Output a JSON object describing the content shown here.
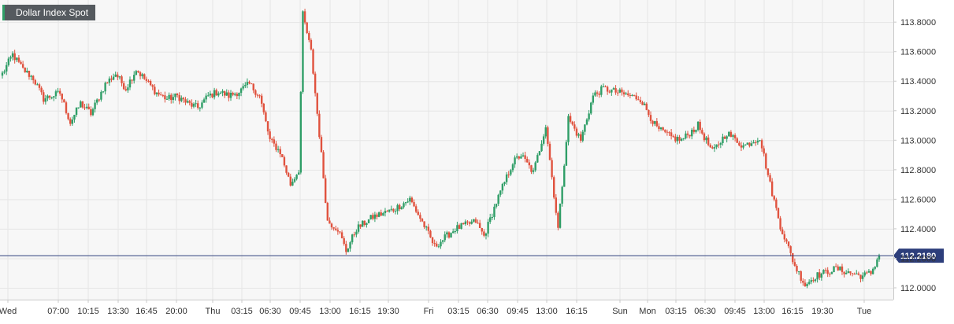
{
  "chart_data": {
    "type": "candlestick",
    "title": "Dollar Index Spot",
    "ylim": [
      111.92,
      113.95
    ],
    "yticks": [
      112.0,
      112.2,
      112.4,
      112.6,
      112.8,
      113.0,
      113.2,
      113.4,
      113.6,
      113.8
    ],
    "ytick_labels": [
      "112.0000",
      "112.2000",
      "112.4000",
      "112.6000",
      "112.8000",
      "113.0000",
      "113.2000",
      "113.4000",
      "113.6000",
      "113.8000"
    ],
    "xtick_labels": [
      "Wed",
      "07:00",
      "10:15",
      "13:30",
      "16:45",
      "20:00",
      "Thu",
      "03:15",
      "06:30",
      "09:45",
      "13:00",
      "16:15",
      "19:30",
      "Fri",
      "03:15",
      "06:30",
      "09:45",
      "13:00",
      "16:15",
      "Sun",
      "Mon",
      "03:15",
      "06:30",
      "09:45",
      "13:00",
      "16:15",
      "19:30",
      "Tue"
    ],
    "last_price": 112.218,
    "last_price_label": "112.2180",
    "grid": true,
    "colors": {
      "up": "#2f9e67",
      "down": "#e0523e",
      "price_line": "#2d3e7b",
      "grid": "#e6e6e6",
      "background": "#f7f7f7"
    },
    "anchors": [
      [
        0,
        113.45
      ],
      [
        5,
        113.58
      ],
      [
        10,
        113.48
      ],
      [
        15,
        113.42
      ],
      [
        20,
        113.28
      ],
      [
        28,
        113.32
      ],
      [
        33,
        113.12
      ],
      [
        38,
        113.25
      ],
      [
        43,
        113.18
      ],
      [
        50,
        113.38
      ],
      [
        55,
        113.45
      ],
      [
        60,
        113.35
      ],
      [
        65,
        113.48
      ],
      [
        70,
        113.4
      ],
      [
        75,
        113.32
      ],
      [
        80,
        113.28
      ],
      [
        85,
        113.3
      ],
      [
        90,
        113.25
      ],
      [
        95,
        113.22
      ],
      [
        100,
        113.3
      ],
      [
        105,
        113.33
      ],
      [
        110,
        113.3
      ],
      [
        115,
        113.33
      ],
      [
        120,
        113.38
      ],
      [
        125,
        113.3
      ],
      [
        130,
        113.0
      ],
      [
        135,
        112.92
      ],
      [
        140,
        112.7
      ],
      [
        144,
        112.8
      ],
      [
        146,
        113.85
      ],
      [
        150,
        113.6
      ],
      [
        155,
        112.9
      ],
      [
        158,
        112.45
      ],
      [
        163,
        112.4
      ],
      [
        167,
        112.25
      ],
      [
        172,
        112.4
      ],
      [
        180,
        112.48
      ],
      [
        190,
        112.53
      ],
      [
        198,
        112.6
      ],
      [
        205,
        112.42
      ],
      [
        210,
        112.28
      ],
      [
        220,
        112.4
      ],
      [
        230,
        112.45
      ],
      [
        234,
        112.35
      ],
      [
        240,
        112.58
      ],
      [
        248,
        112.85
      ],
      [
        252,
        112.9
      ],
      [
        258,
        112.78
      ],
      [
        264,
        113.1
      ],
      [
        270,
        112.4
      ],
      [
        275,
        113.15
      ],
      [
        281,
        113.0
      ],
      [
        287,
        113.3
      ],
      [
        292,
        113.35
      ],
      [
        300,
        113.32
      ],
      [
        310,
        113.28
      ],
      [
        318,
        113.08
      ],
      [
        325,
        113.02
      ],
      [
        330,
        113.0
      ],
      [
        338,
        113.1
      ],
      [
        345,
        112.92
      ],
      [
        352,
        113.05
      ],
      [
        360,
        112.96
      ],
      [
        368,
        113.02
      ],
      [
        373,
        112.7
      ],
      [
        378,
        112.42
      ],
      [
        385,
        112.15
      ],
      [
        390,
        112.02
      ],
      [
        395,
        112.08
      ],
      [
        405,
        112.13
      ],
      [
        412,
        112.1
      ],
      [
        418,
        112.08
      ],
      [
        422,
        112.1
      ],
      [
        426,
        112.22
      ]
    ]
  }
}
